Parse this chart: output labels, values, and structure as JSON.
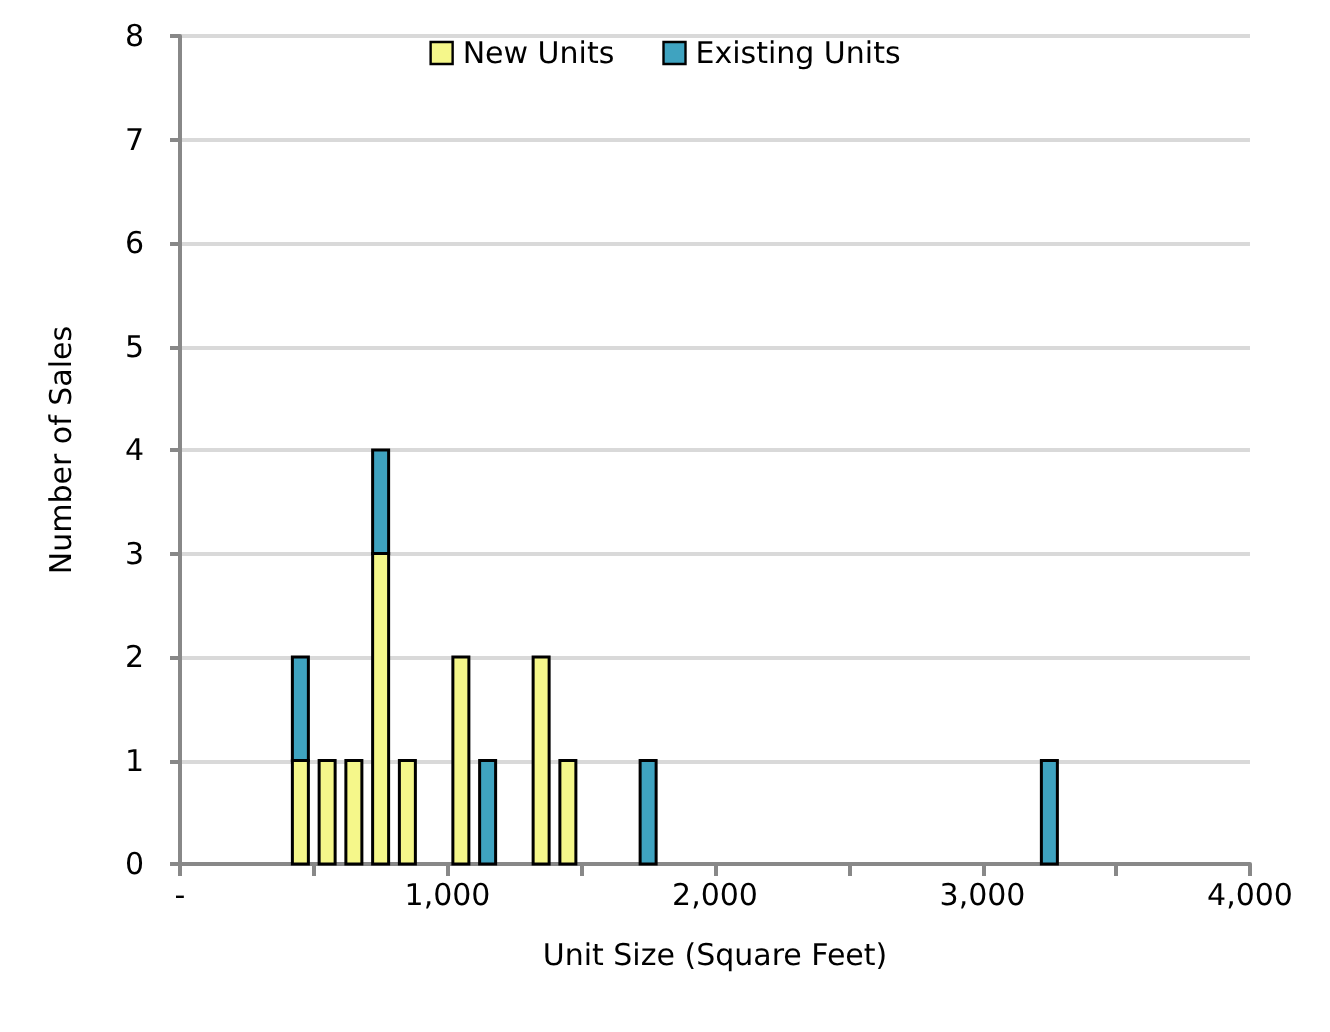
{
  "chart_data": {
    "type": "bar",
    "stacked": true,
    "xlabel": "Unit Size (Square Feet)",
    "ylabel": "Number of Sales",
    "x": [
      450,
      550,
      650,
      750,
      850,
      1050,
      1150,
      1350,
      1450,
      1750,
      3250
    ],
    "series": [
      {
        "name": "New Units",
        "color": "#f5f78a",
        "values": [
          1,
          1,
          1,
          3,
          1,
          2,
          null,
          2,
          1,
          null,
          null
        ]
      },
      {
        "name": "Existing Units",
        "color": "#3fa3c0",
        "values": [
          1,
          null,
          null,
          1,
          null,
          null,
          1,
          null,
          null,
          1,
          1
        ]
      }
    ],
    "xlim": [
      0,
      4000
    ],
    "xticks": [
      {
        "value": 0,
        "label": "-"
      },
      {
        "value": 500,
        "label": null
      },
      {
        "value": 1000,
        "label": "1,000"
      },
      {
        "value": 1500,
        "label": null
      },
      {
        "value": 2000,
        "label": "2,000"
      },
      {
        "value": 2500,
        "label": null
      },
      {
        "value": 3000,
        "label": "3,000"
      },
      {
        "value": 3500,
        "label": null
      },
      {
        "value": 4000,
        "label": "4,000"
      }
    ],
    "ylim": [
      0,
      8
    ],
    "yticks": [
      0,
      1,
      2,
      3,
      4,
      5,
      6,
      7,
      8
    ],
    "grid": "y",
    "legend": "top"
  }
}
